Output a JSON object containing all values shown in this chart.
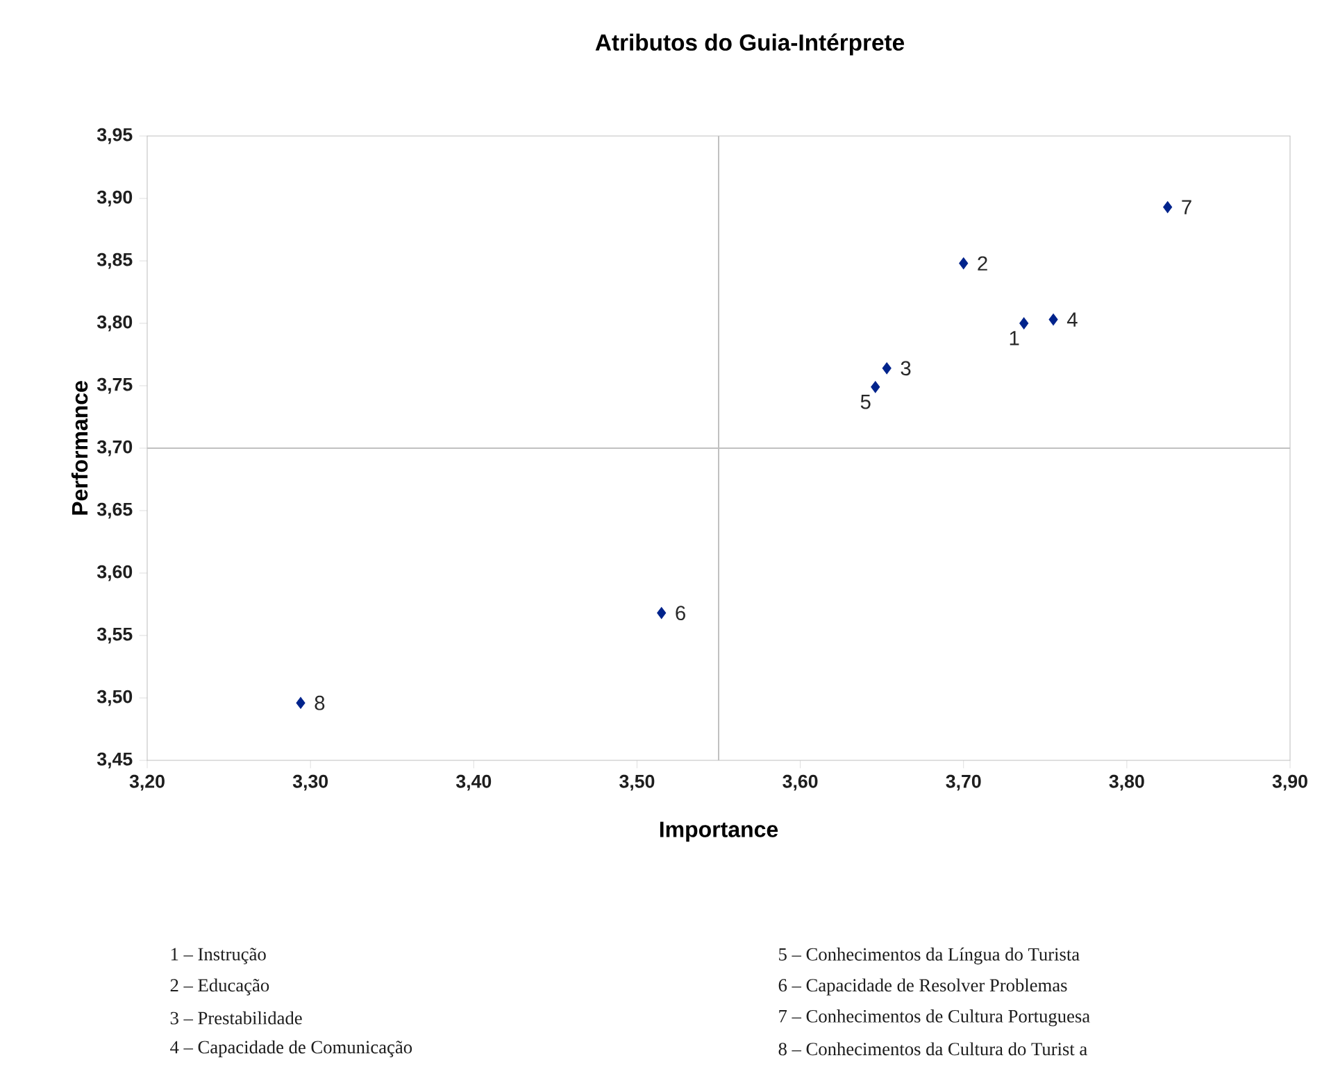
{
  "chart_data": {
    "type": "scatter",
    "title": "Atributos do Guia-Intérprete",
    "xlabel": "Importance",
    "ylabel": "Performance",
    "x": [
      3.737,
      3.7,
      3.653,
      3.755,
      3.646,
      3.515,
      3.825,
      3.294
    ],
    "values": [
      3.8,
      3.848,
      3.764,
      3.803,
      3.749,
      3.568,
      3.893,
      3.496
    ],
    "color": "#00238c",
    "marker": "diamond",
    "xlim": [
      3.2,
      3.9
    ],
    "ylim": [
      3.45,
      3.95
    ],
    "xticks": [
      {
        "value": 3.2,
        "label": "3,20"
      },
      {
        "value": 3.3,
        "label": "3,30"
      },
      {
        "value": 3.4,
        "label": "3,40"
      },
      {
        "value": 3.5,
        "label": "3,50"
      },
      {
        "value": 3.6,
        "label": "3,60"
      },
      {
        "value": 3.7,
        "label": "3,70"
      },
      {
        "value": 3.8,
        "label": "3,80"
      },
      {
        "value": 3.9,
        "label": "3,90"
      }
    ],
    "yticks": [
      {
        "value": 3.45,
        "label": "3,45"
      },
      {
        "value": 3.5,
        "label": "3,50"
      },
      {
        "value": 3.55,
        "label": "3,55"
      },
      {
        "value": 3.6,
        "label": "3,60"
      },
      {
        "value": 3.65,
        "label": "3,65"
      },
      {
        "value": 3.7,
        "label": "3,70"
      },
      {
        "value": 3.75,
        "label": "3,75"
      },
      {
        "value": 3.8,
        "label": "3,80"
      },
      {
        "value": 3.85,
        "label": "3,85"
      },
      {
        "value": 3.9,
        "label": "3,90"
      },
      {
        "value": 3.95,
        "label": "3,95"
      }
    ],
    "ref_lines": [
      {
        "axis": "x",
        "value": 3.55,
        "color": "#c0c0c0"
      },
      {
        "axis": "y",
        "value": 3.7,
        "color": "#c0c0c0"
      }
    ],
    "annotations": [
      {
        "text": "1",
        "x": 3.737,
        "y": 3.8
      },
      {
        "text": "2",
        "x": 3.7,
        "y": 3.848
      },
      {
        "text": "3",
        "x": 3.653,
        "y": 3.764
      },
      {
        "text": "4",
        "x": 3.755,
        "y": 3.803
      },
      {
        "text": "5",
        "x": 3.646,
        "y": 3.749
      },
      {
        "text": "6",
        "x": 3.515,
        "y": 3.568
      },
      {
        "text": "7",
        "x": 3.825,
        "y": 3.893
      },
      {
        "text": "8",
        "x": 3.294,
        "y": 3.496
      },
      "1 – Instrução",
      "2 – Educação",
      "3 – Prestabilidade",
      "4 – Capacidade de Comunicação",
      "5 – Conhecimentos da Língua do Turista",
      "6 – Capacidade de Resolver Problemas",
      "7 – Conhecimentos de Cultura Portuguesa",
      "8 – Conhecimentos da Cultura do Turist a"
    ]
  }
}
